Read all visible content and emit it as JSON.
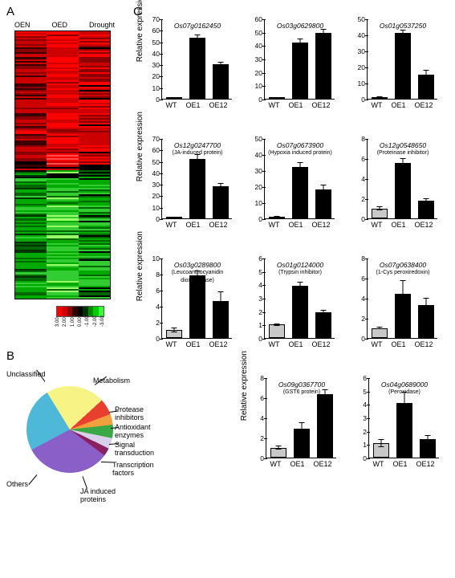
{
  "panelA": {
    "label": "A",
    "columns": [
      "OEN",
      "OED",
      "Drought"
    ],
    "heatmap_colors_top": [
      "#3a0000",
      "#8b0000",
      "#cc0000",
      "#ff0000",
      "#ff4d4d"
    ],
    "heatmap_colors_bottom": [
      "#003300",
      "#006600",
      "#00aa00",
      "#33cc33",
      "#99ff66"
    ],
    "n_rows_red": 85,
    "n_rows_green": 80,
    "legend_colors": [
      "#ff0000",
      "#cc0000",
      "#8e0000",
      "#300000",
      "#000000",
      "#003300",
      "#008800",
      "#00cc00",
      "#33ff33"
    ],
    "legend_ticks": [
      "3.00",
      "2.00",
      "1.00",
      "0.00",
      "-1.00",
      "-2.00",
      "-3.00"
    ]
  },
  "panelB": {
    "label": "B",
    "slices": [
      {
        "label": "Unclassified",
        "pct": 24,
        "color": "#4db8d8"
      },
      {
        "label": "Metabolism",
        "pct": 22,
        "color": "#f7f485"
      },
      {
        "label": "Protease\ninhibitors",
        "pct": 6,
        "color": "#e83f2e"
      },
      {
        "label": "Antioxidant\nenzymes",
        "pct": 4,
        "color": "#f0a03c"
      },
      {
        "label": "Signal\ntransduction",
        "pct": 5,
        "color": "#3aa845"
      },
      {
        "label": "Transcription\nfactors",
        "pct": 4,
        "color": "#d8cfe8"
      },
      {
        "label": "JA induced\nproteins",
        "pct": 3,
        "color": "#8a2060"
      },
      {
        "label": "Others",
        "pct": 32,
        "color": "#8a5fc7"
      }
    ]
  },
  "panelC": {
    "label": "C",
    "ylabel": "Relative expression",
    "xcats": [
      "WT",
      "OE1",
      "OE12"
    ],
    "bar_colors": {
      "WT": "#c8c8c8",
      "OE": "#000000"
    },
    "charts": [
      [
        {
          "gene": "Os07g0162450",
          "sub": "",
          "ymax": 70,
          "ystep": 10,
          "values": [
            1.0,
            53,
            30
          ],
          "err": [
            0.3,
            3,
            2
          ]
        },
        {
          "gene": "Os03g0629800",
          "sub": "",
          "ymax": 60,
          "ystep": 10,
          "values": [
            1.1,
            42,
            49
          ],
          "err": [
            0.3,
            3,
            3
          ]
        },
        {
          "gene": "Os01g0537250",
          "sub": "",
          "ymax": 50,
          "ystep": 10,
          "values": [
            1.0,
            41,
            15
          ],
          "err": [
            0.3,
            2,
            3
          ]
        }
      ],
      [
        {
          "gene": "Os12g0247700",
          "sub": "(JA-induced protein)",
          "ymax": 70,
          "ystep": 10,
          "values": [
            1.0,
            52,
            28
          ],
          "err": [
            0.3,
            4,
            3
          ]
        },
        {
          "gene": "Os07g0673900",
          "sub": "(Hypoxia induced protein)",
          "ymax": 50,
          "ystep": 10,
          "values": [
            1.0,
            32,
            18
          ],
          "err": [
            0.3,
            3,
            3
          ]
        },
        {
          "gene": "Os12g0548650",
          "sub": "(Proteinase inhibitor)",
          "ymax": 8,
          "ystep": 2,
          "values": [
            1.0,
            5.5,
            1.8
          ],
          "err": [
            0.2,
            0.5,
            0.2
          ]
        }
      ],
      [
        {
          "gene": "Os03g0289800",
          "sub": "(Leucoanthocyanidin dioxygenase)",
          "ymax": 10,
          "ystep": 2,
          "values": [
            1.0,
            7.8,
            4.6
          ],
          "err": [
            0.3,
            0.6,
            1.2
          ]
        },
        {
          "gene": "Os01g0124000",
          "sub": "(Trypsin inhibitor)",
          "ymax": 6,
          "ystep": 1,
          "values": [
            1.0,
            3.9,
            1.9
          ],
          "err": [
            0.1,
            0.3,
            0.2
          ]
        },
        {
          "gene": "Os07g0638400",
          "sub": "(1-Cys peroxiredoxin)",
          "ymax": 8,
          "ystep": 2,
          "values": [
            1.0,
            4.4,
            3.3
          ],
          "err": [
            0.1,
            1.4,
            0.7
          ]
        }
      ],
      [
        {
          "gene": "Os09g0367700",
          "sub": "(GST6 protein)",
          "ymax": 8,
          "ystep": 2,
          "values": [
            1.0,
            2.9,
            6.3
          ],
          "err": [
            0.2,
            0.6,
            0.5
          ]
        },
        {
          "gene": "Os04g0689000",
          "sub": "(Peroxidase)",
          "ymax": 6,
          "ystep": 1,
          "values": [
            1.1,
            4.1,
            1.4
          ],
          "err": [
            0.3,
            0.8,
            0.3
          ]
        }
      ]
    ]
  }
}
